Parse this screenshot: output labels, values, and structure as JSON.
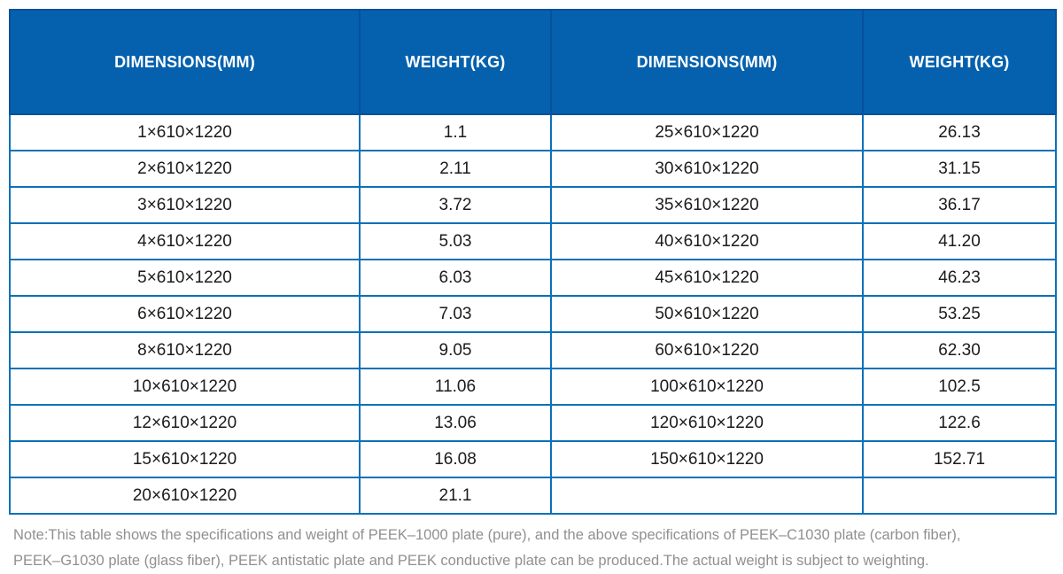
{
  "table": {
    "headers": [
      "DIMENSIONS(MM)",
      "WEIGHT(KG)",
      "DIMENSIONS(MM)",
      "WEIGHT(KG)"
    ],
    "rows": [
      [
        "1×610×1220",
        "1.1",
        "25×610×1220",
        "26.13"
      ],
      [
        "2×610×1220",
        "2.11",
        "30×610×1220",
        "31.15"
      ],
      [
        "3×610×1220",
        "3.72",
        "35×610×1220",
        "36.17"
      ],
      [
        "4×610×1220",
        "5.03",
        "40×610×1220",
        "41.20"
      ],
      [
        "5×610×1220",
        "6.03",
        "45×610×1220",
        "46.23"
      ],
      [
        "6×610×1220",
        "7.03",
        "50×610×1220",
        "53.25"
      ],
      [
        "8×610×1220",
        "9.05",
        "60×610×1220",
        "62.30"
      ],
      [
        "10×610×1220",
        "11.06",
        "100×610×1220",
        "102.5"
      ],
      [
        "12×610×1220",
        "13.06",
        "120×610×1220",
        "122.6"
      ],
      [
        "15×610×1220",
        "16.08",
        "150×610×1220",
        "152.71"
      ],
      [
        "20×610×1220",
        "21.1",
        "",
        ""
      ]
    ]
  },
  "note": {
    "line1": "Note:This table shows the specifications and weight of PEEK–1000 plate (pure), and the above specifications of PEEK–C1030 plate (carbon fiber),",
    "line2": "PEEK–G1030 plate (glass fiber), PEEK antistatic plate and PEEK conductive plate can be produced.The actual weight is subject to weighting."
  },
  "colors": {
    "header_bg": "#0561ad",
    "header_border": "#05509b",
    "grid_border": "#0a71b7",
    "body_text": "#1b1b1b",
    "note_text": "#909090"
  }
}
